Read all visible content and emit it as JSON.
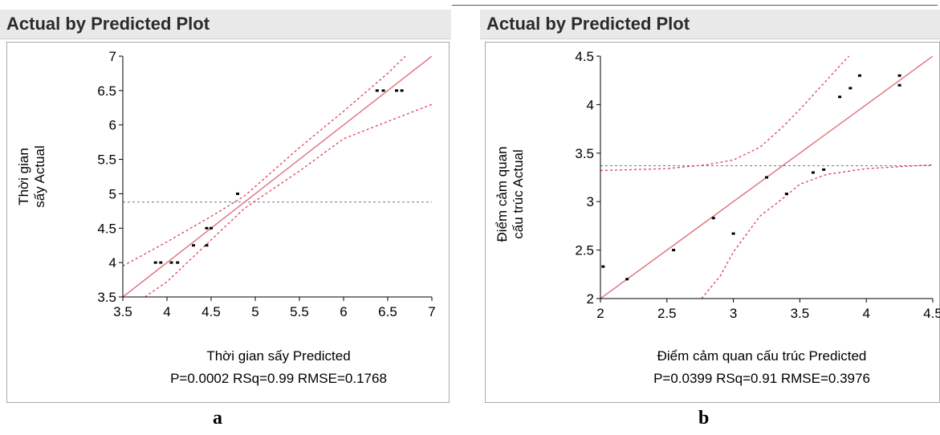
{
  "chart_data": [
    {
      "type": "scatter",
      "panel_title": "Actual by Predicted Plot",
      "xlabel": "Thời gian sấy Predicted",
      "ylabel_lines": [
        "Thời gian",
        "sấy Actual"
      ],
      "stats": "P=0.0002 RSq=0.99 RMSE=0.1768",
      "xlim": [
        3.5,
        7
      ],
      "ylim": [
        3.5,
        7
      ],
      "x_ticks": [
        "3.5",
        "4",
        "4.5",
        "5",
        "5.5",
        "6",
        "6.5",
        "7"
      ],
      "y_ticks": [
        "3.5",
        "4",
        "4.5",
        "5",
        "5.5",
        "6",
        "6.5",
        "7"
      ],
      "mean_line_y": 4.88,
      "points": [
        {
          "x": 3.87,
          "y": 4.0
        },
        {
          "x": 3.93,
          "y": 4.0
        },
        {
          "x": 4.05,
          "y": 4.0
        },
        {
          "x": 4.12,
          "y": 4.0
        },
        {
          "x": 4.3,
          "y": 4.25
        },
        {
          "x": 4.45,
          "y": 4.25
        },
        {
          "x": 4.45,
          "y": 4.5
        },
        {
          "x": 4.5,
          "y": 4.5
        },
        {
          "x": 4.8,
          "y": 5.0
        },
        {
          "x": 6.38,
          "y": 6.5
        },
        {
          "x": 6.45,
          "y": 6.5
        },
        {
          "x": 6.6,
          "y": 6.5
        },
        {
          "x": 6.66,
          "y": 6.5
        }
      ],
      "fit_line": [
        [
          3.5,
          3.5
        ],
        [
          7.0,
          7.0
        ]
      ],
      "ci_upper": [
        [
          3.5,
          3.95
        ],
        [
          4.0,
          4.3
        ],
        [
          4.5,
          4.67
        ],
        [
          4.88,
          4.97
        ],
        [
          5.5,
          5.67
        ],
        [
          6.0,
          6.2
        ],
        [
          6.5,
          6.75
        ],
        [
          6.7,
          7.0
        ]
      ],
      "ci_lower": [
        [
          3.75,
          3.5
        ],
        [
          4.0,
          3.72
        ],
        [
          4.5,
          4.33
        ],
        [
          4.88,
          4.79
        ],
        [
          5.5,
          5.33
        ],
        [
          6.0,
          5.8
        ],
        [
          6.5,
          6.05
        ],
        [
          7.0,
          6.3
        ]
      ],
      "colors": {
        "fit": "#e07880",
        "ci": "#e04058",
        "mean": "#5f7f9f",
        "point": "#000000"
      }
    },
    {
      "type": "scatter",
      "panel_title": "Actual by Predicted Plot",
      "xlabel": "Điểm cảm quan cấu trúc Predicted",
      "ylabel_lines": [
        "Điểm cảm quan",
        "cấu trúc Actual"
      ],
      "stats": "P=0.0399 RSq=0.91 RMSE=0.3976",
      "xlim": [
        2,
        4.5
      ],
      "ylim": [
        2,
        4.5
      ],
      "x_ticks": [
        "2",
        "2.5",
        "3",
        "3.5",
        "4",
        "4.5"
      ],
      "y_ticks": [
        "2",
        "2.5",
        "3",
        "3.5",
        "4",
        "4.5"
      ],
      "mean_line_y": 3.37,
      "points": [
        {
          "x": 2.02,
          "y": 2.33
        },
        {
          "x": 2.2,
          "y": 2.2
        },
        {
          "x": 2.55,
          "y": 2.5
        },
        {
          "x": 2.85,
          "y": 2.83
        },
        {
          "x": 3.0,
          "y": 2.67
        },
        {
          "x": 3.25,
          "y": 3.25
        },
        {
          "x": 3.4,
          "y": 3.08
        },
        {
          "x": 3.6,
          "y": 3.3
        },
        {
          "x": 3.68,
          "y": 3.33
        },
        {
          "x": 3.8,
          "y": 4.08
        },
        {
          "x": 3.88,
          "y": 4.17
        },
        {
          "x": 3.95,
          "y": 4.3
        },
        {
          "x": 4.25,
          "y": 4.2
        },
        {
          "x": 4.25,
          "y": 4.3
        }
      ],
      "fit_line": [
        [
          2.0,
          2.0
        ],
        [
          4.5,
          4.5
        ]
      ],
      "ci_upper": [
        [
          2.0,
          3.32
        ],
        [
          2.5,
          3.34
        ],
        [
          2.8,
          3.38
        ],
        [
          3.0,
          3.43
        ],
        [
          3.2,
          3.56
        ],
        [
          3.37,
          3.77
        ],
        [
          3.5,
          3.95
        ],
        [
          3.7,
          4.25
        ],
        [
          3.8,
          4.4
        ],
        [
          3.87,
          4.5
        ]
      ],
      "ci_lower": [
        [
          2.76,
          2.0
        ],
        [
          2.9,
          2.23
        ],
        [
          3.0,
          2.48
        ],
        [
          3.2,
          2.85
        ],
        [
          3.37,
          3.03
        ],
        [
          3.5,
          3.18
        ],
        [
          3.7,
          3.28
        ],
        [
          4.0,
          3.34
        ],
        [
          4.5,
          3.38
        ]
      ],
      "colors": {
        "fit": "#e07880",
        "ci": "#e04058",
        "mean": "#5f7f9f",
        "point": "#000000"
      }
    }
  ],
  "labels": {
    "a": "a",
    "b": "b"
  }
}
